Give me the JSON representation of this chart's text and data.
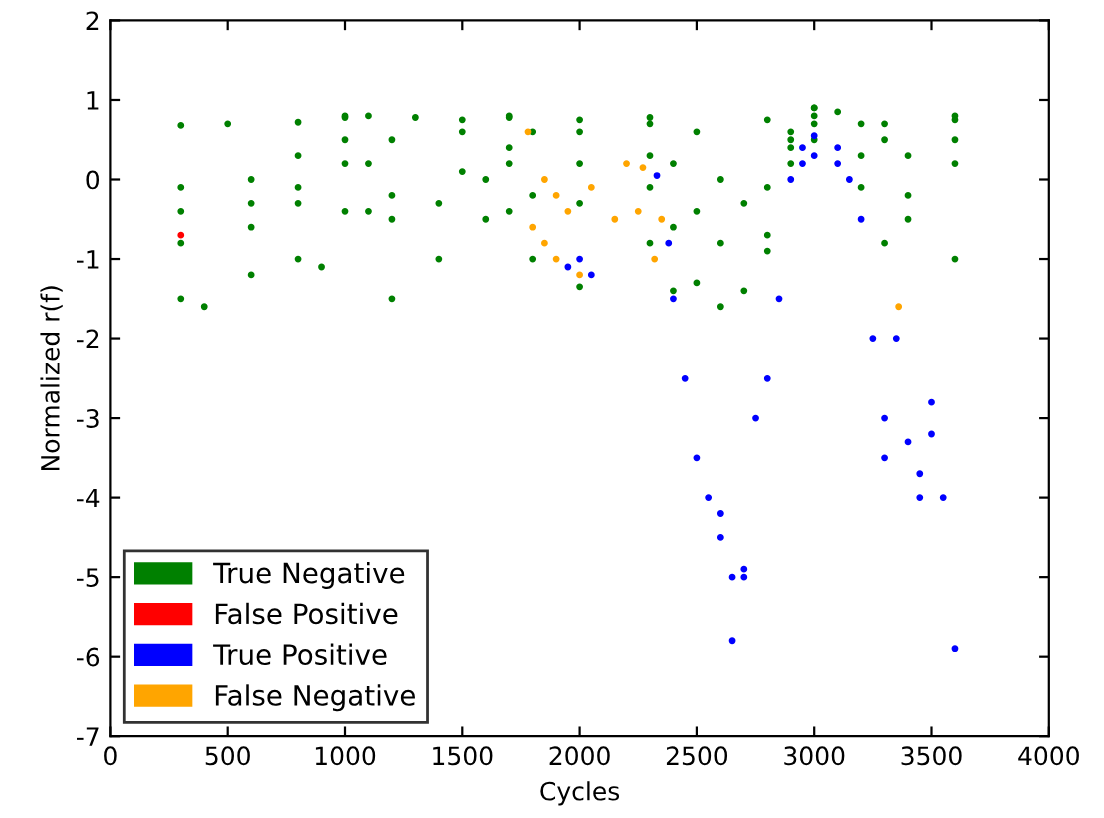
{
  "chart_data": {
    "type": "scatter",
    "xlabel": "Cycles",
    "ylabel": "Normalized r(f)",
    "xlim": [
      0,
      4000
    ],
    "ylim": [
      -7,
      2
    ],
    "xticks": [
      0,
      500,
      1000,
      1500,
      2000,
      2500,
      3000,
      3500,
      4000
    ],
    "yticks": [
      -7,
      -6,
      -5,
      -4,
      -3,
      -2,
      -1,
      0,
      1,
      2
    ],
    "grid": false,
    "legend": "bottom left",
    "marker": "circle",
    "series": [
      {
        "name": "True Negative",
        "color": "#008000",
        "x": [
          300,
          500,
          800,
          1000,
          1300,
          1500,
          1700,
          2000,
          2300,
          2500,
          2800,
          3000,
          3300,
          3600,
          300,
          600,
          800,
          1000,
          1100,
          1200,
          1500,
          1700,
          1800,
          2000,
          2300,
          2400,
          2600,
          2800,
          2900,
          3000,
          3100,
          3200,
          3400,
          3600,
          300,
          400,
          600,
          800,
          900,
          1000,
          1100,
          1200,
          1400,
          1600,
          1700,
          1800,
          2000,
          2300,
          2400,
          2500,
          2600,
          2700,
          2800,
          2900,
          3000,
          3200,
          3300,
          3400,
          3600,
          300,
          600,
          800,
          1000,
          1100,
          1200,
          1400,
          1600,
          1700,
          1800,
          2000,
          2300,
          2400,
          2600,
          2800,
          2900,
          3000,
          3200,
          3400,
          3600,
          300,
          600,
          800,
          1000,
          1200,
          1500,
          1700,
          2000,
          2300,
          2500,
          2700,
          2900,
          3000,
          3300,
          3600
        ],
        "values": [
          0.68,
          0.7,
          0.72,
          0.78,
          0.78,
          0.75,
          0.78,
          0.75,
          0.78,
          0.6,
          0.75,
          0.9,
          0.7,
          0.75,
          -0.1,
          0,
          0.3,
          0.8,
          0.8,
          0.5,
          0.6,
          0.8,
          0.6,
          0.6,
          0.7,
          0.2,
          0,
          -0.1,
          0.6,
          0.9,
          0.85,
          0.7,
          0.3,
          0.8,
          -1.5,
          -1.6,
          -1.2,
          -1.0,
          -1.1,
          -0.4,
          -0.4,
          -1.5,
          -1.0,
          -0.5,
          -0.4,
          -1.0,
          -1.35,
          -0.8,
          -1.4,
          -1.3,
          -1.6,
          -1.4,
          -0.9,
          0.2,
          0.5,
          -0.1,
          -0.8,
          -0.5,
          -1.0,
          -0.8,
          -0.6,
          -0.3,
          0.2,
          0.2,
          -0.5,
          -0.3,
          0,
          0.2,
          -0.2,
          -0.3,
          -0.1,
          -0.6,
          -0.8,
          -0.7,
          0.4,
          0.7,
          0.3,
          -0.2,
          0.2,
          -0.4,
          -0.3,
          -0.1,
          0.5,
          -0.2,
          0.1,
          0.4,
          0.2,
          0.3,
          -0.4,
          -0.3,
          0.5,
          0.8,
          0.5,
          0.5
        ]
      },
      {
        "name": "False Positive",
        "color": "#ff0000",
        "x": [
          300
        ],
        "values": [
          -0.7
        ]
      },
      {
        "name": "True Positive",
        "color": "#0000ff",
        "x": [
          1950,
          2000,
          2050,
          2330,
          2380,
          2400,
          2450,
          2500,
          2550,
          2600,
          2650,
          2700,
          2750,
          2800,
          2850,
          2900,
          2950,
          3000,
          3100,
          3150,
          3200,
          3250,
          3300,
          3350,
          3400,
          3450,
          3500,
          3550,
          3600,
          2600,
          2650,
          2700,
          2950,
          3000,
          3100,
          3300,
          3450,
          3500
        ],
        "values": [
          -1.1,
          -1.0,
          -1.2,
          0.05,
          -0.8,
          -1.5,
          -2.5,
          -3.5,
          -4.0,
          -4.5,
          -5.8,
          -5.0,
          -3.0,
          -2.5,
          -1.5,
          0.0,
          0.4,
          0.55,
          0.4,
          0,
          -0.5,
          -2.0,
          -3.5,
          -2.0,
          -3.3,
          -4.0,
          -2.8,
          -4.0,
          -5.9,
          -4.2,
          -5.0,
          -4.9,
          0.2,
          0.3,
          0.2,
          -3.0,
          -3.7,
          -3.2
        ]
      },
      {
        "name": "False Negative",
        "color": "#ffa500",
        "x": [
          1780,
          1850,
          1900,
          1950,
          2050,
          2200,
          2270,
          2350,
          1800,
          1850,
          1900,
          2000,
          2150,
          2250,
          2320,
          3360
        ],
        "values": [
          0.6,
          0.0,
          -0.2,
          -0.4,
          -0.1,
          0.2,
          0.15,
          -0.5,
          -0.6,
          -0.8,
          -1.0,
          -1.2,
          -0.5,
          -0.4,
          -1.0,
          -1.6
        ]
      }
    ]
  }
}
